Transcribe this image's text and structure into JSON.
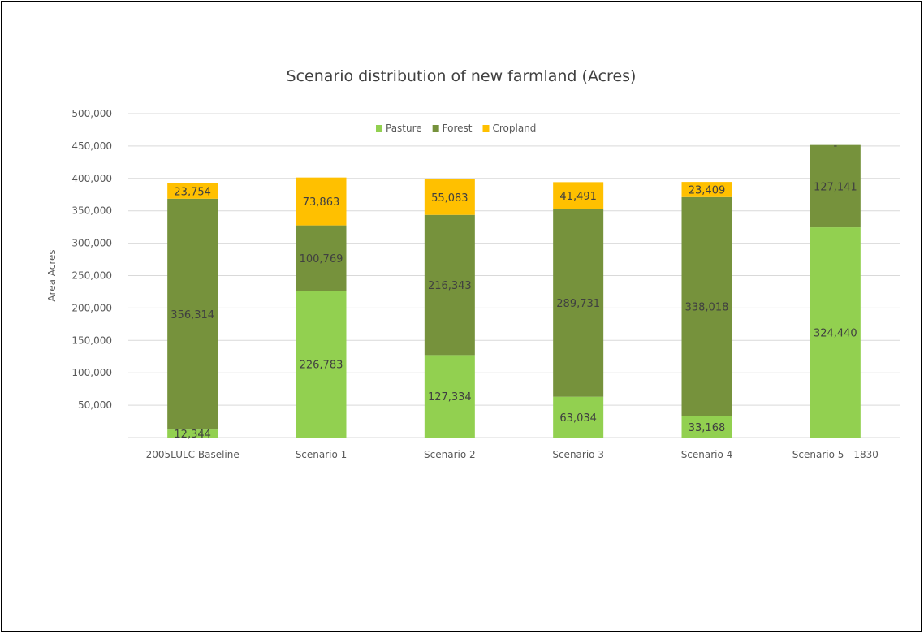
{
  "chart_data": {
    "type": "bar",
    "stacked": true,
    "title": "Scenario distribution of new farmland (Acres)",
    "xlabel": "",
    "ylabel": "Area Acres",
    "ylim": [
      0,
      500000
    ],
    "yticks": [
      0,
      50000,
      100000,
      150000,
      200000,
      250000,
      300000,
      350000,
      400000,
      450000,
      500000
    ],
    "ytick_labels": [
      "-",
      "50,000",
      "100,000",
      "150,000",
      "200,000",
      "250,000",
      "300,000",
      "350,000",
      "400,000",
      "450,000",
      "500,000"
    ],
    "categories": [
      "2005LULC Baseline",
      "Scenario 1",
      "Scenario 2",
      "Scenario 3",
      "Scenario 4",
      "Scenario 5  - 1830"
    ],
    "legend_position": "top",
    "grid": true,
    "series": [
      {
        "name": "Pasture",
        "color": "#92d050",
        "values": [
          12344,
          226783,
          127334,
          63034,
          33168,
          324440
        ],
        "labels": [
          "12,344",
          "226,783",
          "127,334",
          "63,034",
          "33,168",
          "324,440"
        ]
      },
      {
        "name": "Forest",
        "color": "#76923c",
        "values": [
          356314,
          100769,
          216343,
          289731,
          338018,
          127141
        ],
        "labels": [
          "356,314",
          "100,769",
          "216,343",
          "289,731",
          "338,018",
          "127,141"
        ]
      },
      {
        "name": "Cropland",
        "color": "#ffc000",
        "values": [
          23754,
          73863,
          55083,
          41491,
          23409,
          0
        ],
        "labels": [
          "23,754",
          "73,863",
          "55,083",
          "41,491",
          "23,409",
          "-"
        ]
      }
    ]
  }
}
